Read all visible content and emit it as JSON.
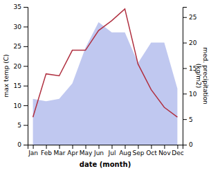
{
  "chart_data": {
    "type": "line",
    "categories": [
      "Jan",
      "Feb",
      "Mar",
      "Apr",
      "May",
      "Jun",
      "Jul",
      "Aug",
      "Sep",
      "Oct",
      "Nov",
      "Dec"
    ],
    "xlabel": "date (month)",
    "ylabel": "max temp (C)",
    "y2label": "med. precipitation\n(kg/m2)",
    "series": [
      {
        "type": "area",
        "axis": "y2",
        "color": "#c0c8f0",
        "values": [
          9.0,
          8.5,
          9.0,
          12.0,
          19.0,
          24.0,
          22.0,
          22.0,
          16.0,
          20.0,
          20.0,
          11.0
        ]
      },
      {
        "type": "line",
        "color": "#b03040",
        "values": [
          7.0,
          18.0,
          17.5,
          24.0,
          24.0,
          29.0,
          31.5,
          34.5,
          20.5,
          14.0,
          9.5,
          7.0
        ]
      }
    ],
    "ylim": [
      0,
      35
    ],
    "yticks": [
      0,
      5,
      10,
      15,
      20,
      25,
      30,
      35
    ],
    "y2lim": [
      0,
      27
    ],
    "y2ticks": [
      0,
      5,
      10,
      15,
      20,
      25
    ]
  }
}
